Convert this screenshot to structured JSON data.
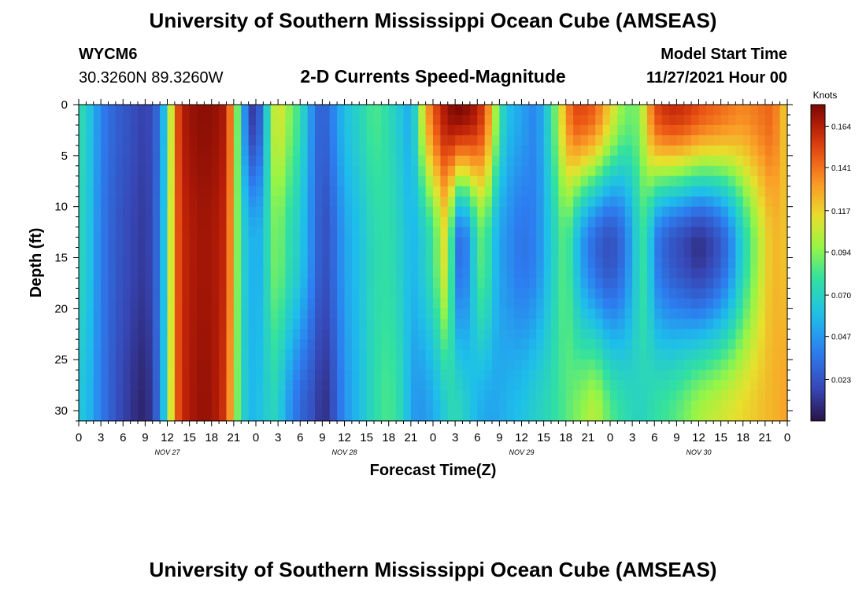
{
  "title": "University of Southern Mississippi Ocean Cube (AMSEAS)",
  "title_repeat": "University of Southern Mississippi Ocean Cube (AMSEAS)",
  "station": {
    "id": "WYCM6",
    "coords": "30.3260N  89.3260W"
  },
  "subtitle": "2-D Currents Speed-Magnitude",
  "model": {
    "label": "Model Start Time",
    "value": "11/27/2021 Hour 00"
  },
  "chart_data": {
    "type": "heatmap",
    "title": "2-D Currents Speed-Magnitude",
    "xlabel": "Forecast Time(Z)",
    "ylabel": "Depth (ft)",
    "xlim": [
      0,
      96
    ],
    "ylim": [
      0,
      31
    ],
    "y_inverted": true,
    "x_tick_labels": [
      "0",
      "3",
      "6",
      "9",
      "12",
      "15",
      "18",
      "21",
      "0",
      "3",
      "6",
      "9",
      "12",
      "15",
      "18",
      "21",
      "0",
      "3",
      "6",
      "9",
      "12",
      "15",
      "18",
      "21",
      "0",
      "3",
      "6",
      "9",
      "12",
      "15",
      "18",
      "21",
      "0"
    ],
    "x_tick_values": [
      0,
      3,
      6,
      9,
      12,
      15,
      18,
      21,
      24,
      27,
      30,
      33,
      36,
      39,
      42,
      45,
      48,
      51,
      54,
      57,
      60,
      63,
      66,
      69,
      72,
      75,
      78,
      81,
      84,
      87,
      90,
      93,
      96
    ],
    "day_labels": [
      {
        "label": "NOV 27",
        "x": 12
      },
      {
        "label": "NOV 28",
        "x": 36
      },
      {
        "label": "NOV 29",
        "x": 60
      },
      {
        "label": "NOV 30",
        "x": 84
      }
    ],
    "y_ticks": [
      0,
      5,
      10,
      15,
      20,
      25,
      30
    ],
    "colorbar": {
      "title": "Knots",
      "ticks": [
        "0.023",
        "0.047",
        "0.070",
        "0.094",
        "0.117",
        "0.141",
        "0.164"
      ],
      "tick_values": [
        0.023,
        0.047,
        0.07,
        0.094,
        0.117,
        0.141,
        0.164
      ],
      "vmin": 0.0,
      "vmax": 0.176
    },
    "time_hours": [
      0,
      1.5,
      3,
      5,
      7,
      8,
      9,
      10,
      11,
      12,
      13,
      14,
      16,
      18,
      20,
      21,
      22,
      23,
      23.5,
      24,
      25,
      26,
      27,
      28,
      30,
      32,
      33,
      34,
      36,
      38,
      40,
      42,
      44,
      45,
      46,
      47,
      48,
      49,
      50,
      51,
      52,
      53,
      54,
      55,
      56,
      57,
      58,
      60,
      62,
      64,
      66,
      67,
      68,
      70,
      72,
      74,
      76,
      77,
      78,
      80,
      82,
      84,
      86,
      88,
      90,
      92,
      94,
      96
    ],
    "speed_surface_knots": [
      0.078,
      0.062,
      0.04,
      0.028,
      0.022,
      0.018,
      0.016,
      0.02,
      0.038,
      0.075,
      0.14,
      0.165,
      0.172,
      0.172,
      0.165,
      0.118,
      0.062,
      0.025,
      0.015,
      0.014,
      0.04,
      0.095,
      0.115,
      0.1,
      0.078,
      0.035,
      0.025,
      0.035,
      0.06,
      0.07,
      0.085,
      0.075,
      0.06,
      0.05,
      0.085,
      0.125,
      0.145,
      0.16,
      0.17,
      0.175,
      0.175,
      0.17,
      0.165,
      0.15,
      0.12,
      0.08,
      0.06,
      0.05,
      0.04,
      0.075,
      0.13,
      0.15,
      0.152,
      0.145,
      0.115,
      0.09,
      0.092,
      0.12,
      0.15,
      0.16,
      0.158,
      0.15,
      0.145,
      0.14,
      0.135,
      0.14,
      0.145,
      0.115
    ],
    "speed_mid_knots": [
      0.075,
      0.06,
      0.038,
      0.025,
      0.018,
      0.015,
      0.013,
      0.02,
      0.04,
      0.078,
      0.14,
      0.16,
      0.168,
      0.168,
      0.16,
      0.115,
      0.07,
      0.06,
      0.055,
      0.05,
      0.06,
      0.085,
      0.095,
      0.08,
      0.065,
      0.035,
      0.02,
      0.025,
      0.05,
      0.06,
      0.075,
      0.078,
      0.065,
      0.055,
      0.06,
      0.07,
      0.08,
      0.1,
      0.12,
      0.04,
      0.03,
      0.05,
      0.08,
      0.09,
      0.065,
      0.05,
      0.045,
      0.035,
      0.04,
      0.065,
      0.09,
      0.07,
      0.05,
      0.03,
      0.02,
      0.035,
      0.075,
      0.08,
      0.04,
      0.025,
      0.018,
      0.01,
      0.018,
      0.035,
      0.07,
      0.1,
      0.125,
      0.12
    ],
    "speed_bottom_knots": [
      0.065,
      0.055,
      0.038,
      0.022,
      0.012,
      0.008,
      0.006,
      0.015,
      0.04,
      0.08,
      0.14,
      0.16,
      0.17,
      0.17,
      0.155,
      0.11,
      0.072,
      0.06,
      0.057,
      0.058,
      0.062,
      0.072,
      0.07,
      0.052,
      0.03,
      0.02,
      0.008,
      0.015,
      0.045,
      0.058,
      0.075,
      0.085,
      0.07,
      0.05,
      0.045,
      0.048,
      0.052,
      0.06,
      0.07,
      0.075,
      0.07,
      0.062,
      0.055,
      0.052,
      0.05,
      0.052,
      0.055,
      0.06,
      0.068,
      0.075,
      0.085,
      0.09,
      0.095,
      0.105,
      0.085,
      0.075,
      0.07,
      0.072,
      0.078,
      0.082,
      0.09,
      0.1,
      0.105,
      0.11,
      0.115,
      0.12,
      0.125,
      0.13
    ]
  }
}
